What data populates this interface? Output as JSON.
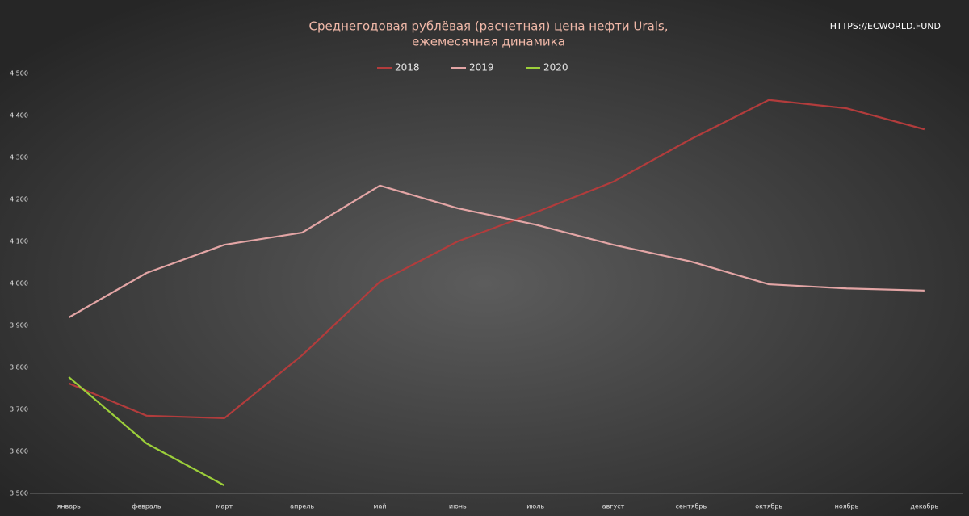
{
  "chart_data": {
    "type": "line",
    "title": [
      "Среднегодовая рублёвая (расчетная) цена нефти Urals,",
      "ежемесячная динамика"
    ],
    "annotation": "HTTPS://ECWORLD.FUND",
    "categories": [
      "январь",
      "февраль",
      "март",
      "апрель",
      "май",
      "июнь",
      "июль",
      "август",
      "сентябрь",
      "октябрь",
      "ноябрь",
      "декабрь"
    ],
    "series": [
      {
        "name": "2018",
        "color": "#b23c3c",
        "values": [
          3762,
          3685,
          3679,
          3829,
          4004,
          4100,
          4169,
          4242,
          4344,
          4437,
          4417,
          4367
        ]
      },
      {
        "name": "2019",
        "color": "#e3a5a5",
        "values": [
          3919,
          4025,
          4092,
          4121,
          4233,
          4179,
          4140,
          4092,
          4052,
          3998,
          3988,
          3983
        ]
      },
      {
        "name": "2020",
        "color": "#9ccf3a",
        "values": [
          3777,
          3619,
          3519,
          null,
          null,
          null,
          null,
          null,
          null,
          null,
          null,
          null
        ]
      }
    ],
    "ylim": [
      3500,
      4500
    ],
    "yticks": [
      {
        "value": 3500,
        "label": "3 500"
      },
      {
        "value": 3600,
        "label": "3 600"
      },
      {
        "value": 3700,
        "label": "3 700"
      },
      {
        "value": 3800,
        "label": "3 800"
      },
      {
        "value": 3900,
        "label": "3 900"
      },
      {
        "value": 4000,
        "label": "4 000"
      },
      {
        "value": 4100,
        "label": "4 100"
      },
      {
        "value": 4200,
        "label": "4 200"
      },
      {
        "value": 4300,
        "label": "4 300"
      },
      {
        "value": 4400,
        "label": "4 400"
      },
      {
        "value": 4500,
        "label": "4 500"
      }
    ],
    "legend": "top",
    "grid": false
  }
}
